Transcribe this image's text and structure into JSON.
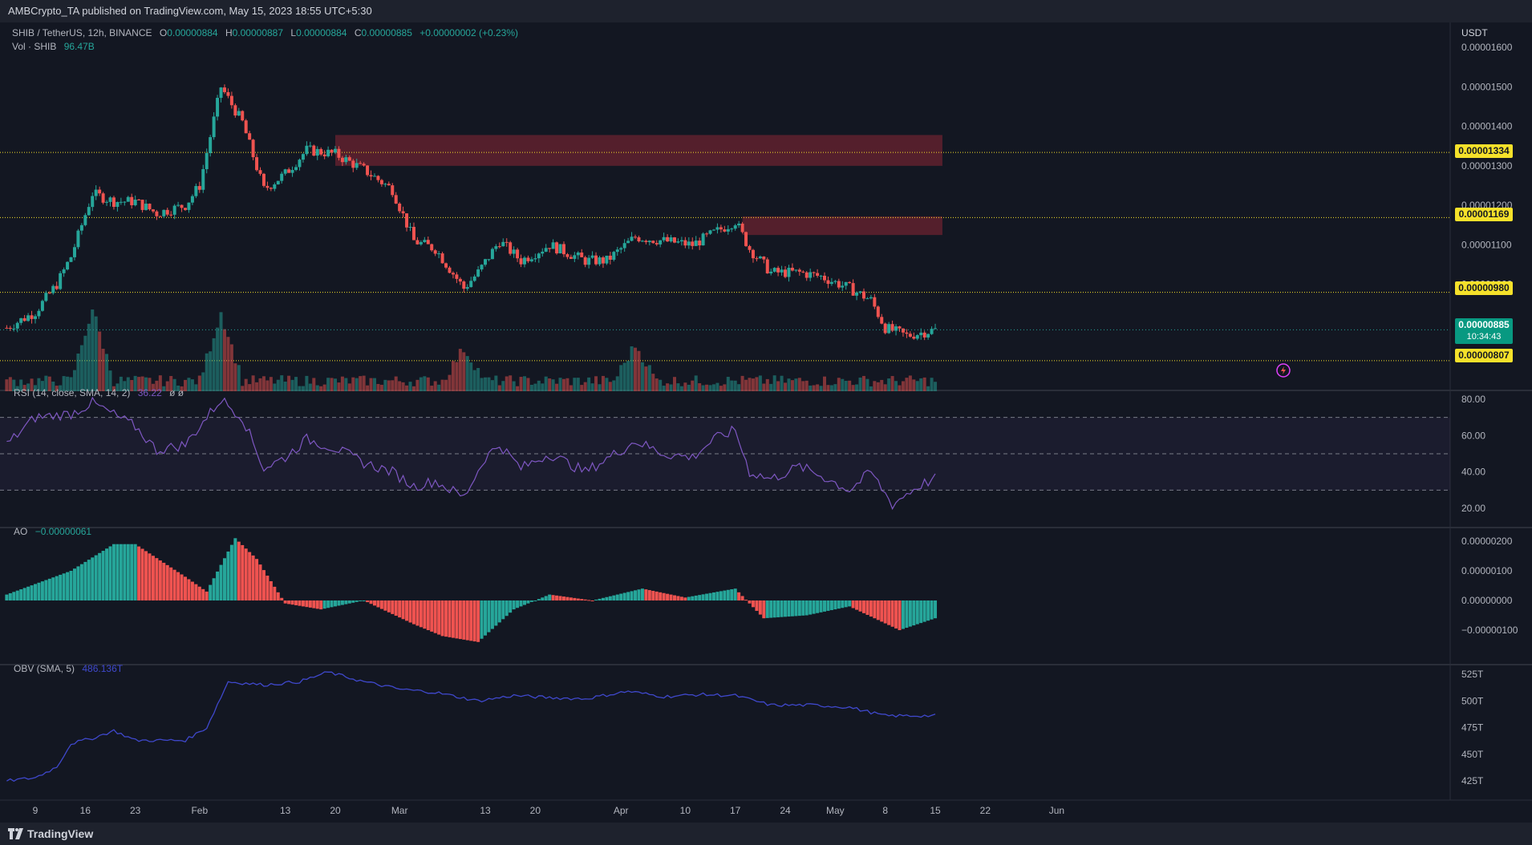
{
  "header": {
    "text": "AMBCrypto_TA published on TradingView.com, May 15, 2023 18:55 UTC+5:30"
  },
  "footer": {
    "brand": "TradingView"
  },
  "legend": {
    "main": {
      "symbol": "SHIB / TetherUS, 12h, BINANCE",
      "o_label": "O",
      "o": "0.00000884",
      "h_label": "H",
      "h": "0.00000887",
      "l_label": "L",
      "l": "0.00000884",
      "c_label": "C",
      "c": "0.00000885",
      "change": "+0.00000002 (+0.23%)"
    },
    "vol": {
      "label": "Vol · SHIB",
      "value": "96.47B"
    },
    "rsi": {
      "label": "RSI (14, close, SMA, 14, 2)",
      "value": "36.22",
      "extra": "ø ø"
    },
    "ao": {
      "label": "AO",
      "value": "−0.00000061"
    },
    "obv": {
      "label": "OBV (SMA, 5)",
      "value": "486.136T"
    }
  },
  "axis": {
    "currency": "USDT"
  },
  "current_price": {
    "value": "0.00000885",
    "countdown": "10:34:43"
  },
  "colors": {
    "up": "#26a69a",
    "down": "#ef5350",
    "level": "#f5e12a",
    "rsi": "#7e57c2",
    "obv": "#3f48cc",
    "zone": "#6b2330"
  },
  "chart_data": [
    {
      "type": "candlestick",
      "panel": "price",
      "x_ticks": [
        "9",
        "16",
        "23",
        "Feb",
        "13",
        "20",
        "Mar",
        "13",
        "20",
        "Apr",
        "10",
        "17",
        "24",
        "May",
        "8",
        "15",
        "22",
        "Jun"
      ],
      "y_ticks": [
        "0.00001600",
        "0.00001500",
        "0.00001400",
        "0.00001300",
        "0.00001200",
        "0.00001100",
        "0.00001000",
        "0.00000900"
      ],
      "ylim": [
        8.1e-06,
        1.63e-05
      ],
      "levels": [
        "0.00001334",
        "0.00001169",
        "0.00000980",
        "0.00000807"
      ],
      "zones": [
        {
          "from_date": "Feb 20",
          "to_date": "May 16",
          "low": 1.3e-05,
          "high": 1.378e-05
        },
        {
          "from_date": "Apr 18",
          "to_date": "May 16",
          "low": 1.125e-05,
          "high": 1.172e-05
        }
      ],
      "anchors": [
        {
          "date": "Jan 5",
          "close": 8.9e-06
        },
        {
          "date": "Jan 9",
          "close": 9.3e-06
        },
        {
          "date": "Jan 12",
          "close": 1e-05
        },
        {
          "date": "Jan 14",
          "close": 1.07e-05
        },
        {
          "date": "Jan 17",
          "close": 1.23e-05
        },
        {
          "date": "Jan 20",
          "close": 1.21e-05
        },
        {
          "date": "Jan 23",
          "close": 1.21e-05
        },
        {
          "date": "Jan 26",
          "close": 1.18e-05
        },
        {
          "date": "Jan 30",
          "close": 1.2e-05
        },
        {
          "date": "Feb 1",
          "close": 1.25e-05
        },
        {
          "date": "Feb 4",
          "close": 1.5e-05
        },
        {
          "date": "Feb 7",
          "close": 1.41e-05
        },
        {
          "date": "Feb 10",
          "close": 1.24e-05
        },
        {
          "date": "Feb 13",
          "close": 1.28e-05
        },
        {
          "date": "Feb 16",
          "close": 1.34e-05
        },
        {
          "date": "Feb 20",
          "close": 1.33e-05
        },
        {
          "date": "Feb 24",
          "close": 1.29e-05
        },
        {
          "date": "Feb 28",
          "close": 1.24e-05
        },
        {
          "date": "Mar 3",
          "close": 1.11e-05
        },
        {
          "date": "Mar 6",
          "close": 1.09e-05
        },
        {
          "date": "Mar 10",
          "close": 9.9e-06
        },
        {
          "date": "Mar 12",
          "close": 1.03e-05
        },
        {
          "date": "Mar 15",
          "close": 1.11e-05
        },
        {
          "date": "Mar 18",
          "close": 1.06e-05
        },
        {
          "date": "Mar 22",
          "close": 1.1e-05
        },
        {
          "date": "Mar 27",
          "close": 1.06e-05
        },
        {
          "date": "Mar 30",
          "close": 1.06e-05
        },
        {
          "date": "Apr 3",
          "close": 1.12e-05
        },
        {
          "date": "Apr 7",
          "close": 1.11e-05
        },
        {
          "date": "Apr 11",
          "close": 1.1e-05
        },
        {
          "date": "Apr 14",
          "close": 1.13e-05
        },
        {
          "date": "Apr 17",
          "close": 1.16e-05
        },
        {
          "date": "Apr 19",
          "close": 1.09e-05
        },
        {
          "date": "Apr 22",
          "close": 1.03e-05
        },
        {
          "date": "Apr 26",
          "close": 1.03e-05
        },
        {
          "date": "Apr 29",
          "close": 1.02e-05
        },
        {
          "date": "May 3",
          "close": 9.9e-06
        },
        {
          "date": "May 6",
          "close": 9.6e-06
        },
        {
          "date": "May 8",
          "close": 8.9e-06
        },
        {
          "date": "May 11",
          "close": 8.7e-06
        },
        {
          "date": "May 15",
          "close": 8.85e-06
        }
      ]
    },
    {
      "type": "bar",
      "panel": "volume",
      "series_name": "Vol · SHIB",
      "peaks": [
        {
          "date": "Jan 17",
          "value": 1.0
        },
        {
          "date": "Feb 4",
          "value": 0.95
        },
        {
          "date": "Mar 10",
          "value": 0.45
        },
        {
          "date": "Apr 3",
          "value": 0.5
        }
      ]
    },
    {
      "type": "line",
      "panel": "rsi",
      "y_ticks": [
        "80.00",
        "60.00",
        "40.00",
        "20.00"
      ],
      "ylim": [
        14,
        86
      ],
      "band": [
        30,
        70
      ],
      "midline": 50,
      "points": [
        {
          "date": "Jan 5",
          "value": 55
        },
        {
          "date": "Jan 9",
          "value": 70
        },
        {
          "date": "Jan 14",
          "value": 72
        },
        {
          "date": "Jan 17",
          "value": 78
        },
        {
          "date": "Jan 23",
          "value": 65
        },
        {
          "date": "Jan 26",
          "value": 52
        },
        {
          "date": "Jan 30",
          "value": 55
        },
        {
          "date": "Feb 4",
          "value": 80
        },
        {
          "date": "Feb 7",
          "value": 70
        },
        {
          "date": "Feb 10",
          "value": 42
        },
        {
          "date": "Feb 13",
          "value": 48
        },
        {
          "date": "Feb 16",
          "value": 58
        },
        {
          "date": "Feb 20",
          "value": 53
        },
        {
          "date": "Feb 24",
          "value": 45
        },
        {
          "date": "Feb 28",
          "value": 40
        },
        {
          "date": "Mar 3",
          "value": 32
        },
        {
          "date": "Mar 6",
          "value": 35
        },
        {
          "date": "Mar 10",
          "value": 26
        },
        {
          "date": "Mar 13",
          "value": 48
        },
        {
          "date": "Mar 15",
          "value": 55
        },
        {
          "date": "Mar 18",
          "value": 42
        },
        {
          "date": "Mar 22",
          "value": 50
        },
        {
          "date": "Mar 27",
          "value": 40
        },
        {
          "date": "Apr 1",
          "value": 52
        },
        {
          "date": "Apr 3",
          "value": 57
        },
        {
          "date": "Apr 7",
          "value": 50
        },
        {
          "date": "Apr 11",
          "value": 48
        },
        {
          "date": "Apr 14",
          "value": 58
        },
        {
          "date": "Apr 17",
          "value": 63
        },
        {
          "date": "Apr 19",
          "value": 40
        },
        {
          "date": "Apr 22",
          "value": 36
        },
        {
          "date": "Apr 26",
          "value": 43
        },
        {
          "date": "Apr 29",
          "value": 38
        },
        {
          "date": "May 3",
          "value": 30
        },
        {
          "date": "May 6",
          "value": 40
        },
        {
          "date": "May 9",
          "value": 22
        },
        {
          "date": "May 11",
          "value": 28
        },
        {
          "date": "May 13",
          "value": 33
        },
        {
          "date": "May 15",
          "value": 36.22
        }
      ]
    },
    {
      "type": "bar",
      "panel": "ao",
      "y_ticks": [
        "0.00000200",
        "0.00000100",
        "0.00000000",
        "−0.00000100"
      ],
      "ylim": [
        -1.6e-06,
        2.6e-06
      ],
      "points": [
        {
          "date": "Jan 5",
          "value": 2e-07
        },
        {
          "date": "Jan 14",
          "value": 1e-06
        },
        {
          "date": "Jan 20",
          "value": 1.9e-06
        },
        {
          "date": "Jan 23",
          "value": 1.9e-06
        },
        {
          "date": "Jan 30",
          "value": 8e-07
        },
        {
          "date": "Feb 2",
          "value": 3e-07
        },
        {
          "date": "Feb 6",
          "value": 2.1e-06
        },
        {
          "date": "Feb 9",
          "value": 1.4e-06
        },
        {
          "date": "Feb 13",
          "value": -1e-07
        },
        {
          "date": "Feb 18",
          "value": -3e-07
        },
        {
          "date": "Feb 24",
          "value": 0.0
        },
        {
          "date": "Mar 3",
          "value": -8e-07
        },
        {
          "date": "Mar 7",
          "value": -1.2e-06
        },
        {
          "date": "Mar 12",
          "value": -1.4e-06
        },
        {
          "date": "Mar 17",
          "value": -3e-07
        },
        {
          "date": "Mar 22",
          "value": 2e-07
        },
        {
          "date": "Mar 28",
          "value": 0.0
        },
        {
          "date": "Apr 4",
          "value": 4e-07
        },
        {
          "date": "Apr 10",
          "value": 1e-07
        },
        {
          "date": "Apr 17",
          "value": 4e-07
        },
        {
          "date": "Apr 21",
          "value": -6e-07
        },
        {
          "date": "Apr 27",
          "value": -5e-07
        },
        {
          "date": "May 3",
          "value": -2e-07
        },
        {
          "date": "May 10",
          "value": -1e-06
        },
        {
          "date": "May 15",
          "value": -6e-07
        }
      ]
    },
    {
      "type": "line",
      "panel": "obv",
      "y_ticks": [
        "525T",
        "500T",
        "475T",
        "450T",
        "425T"
      ],
      "ylim": [
        418,
        532
      ],
      "points": [
        {
          "date": "Jan 5",
          "value": 425
        },
        {
          "date": "Jan 9",
          "value": 428
        },
        {
          "date": "Jan 12",
          "value": 438
        },
        {
          "date": "Jan 14",
          "value": 460
        },
        {
          "date": "Jan 17",
          "value": 465
        },
        {
          "date": "Jan 20",
          "value": 472
        },
        {
          "date": "Jan 23",
          "value": 463
        },
        {
          "date": "Jan 30",
          "value": 463
        },
        {
          "date": "Feb 2",
          "value": 475
        },
        {
          "date": "Feb 5",
          "value": 518
        },
        {
          "date": "Feb 10",
          "value": 515
        },
        {
          "date": "Feb 15",
          "value": 518
        },
        {
          "date": "Feb 19",
          "value": 527
        },
        {
          "date": "Feb 24",
          "value": 518
        },
        {
          "date": "Mar 1",
          "value": 511
        },
        {
          "date": "Mar 6",
          "value": 508
        },
        {
          "date": "Mar 12",
          "value": 500
        },
        {
          "date": "Mar 17",
          "value": 505
        },
        {
          "date": "Mar 22",
          "value": 503
        },
        {
          "date": "Mar 27",
          "value": 502
        },
        {
          "date": "Apr 2",
          "value": 509
        },
        {
          "date": "Apr 7",
          "value": 504
        },
        {
          "date": "Apr 12",
          "value": 506
        },
        {
          "date": "Apr 17",
          "value": 505
        },
        {
          "date": "Apr 22",
          "value": 496
        },
        {
          "date": "Apr 28",
          "value": 496
        },
        {
          "date": "May 3",
          "value": 494
        },
        {
          "date": "May 8",
          "value": 486
        },
        {
          "date": "May 15",
          "value": 486.1
        }
      ]
    }
  ]
}
